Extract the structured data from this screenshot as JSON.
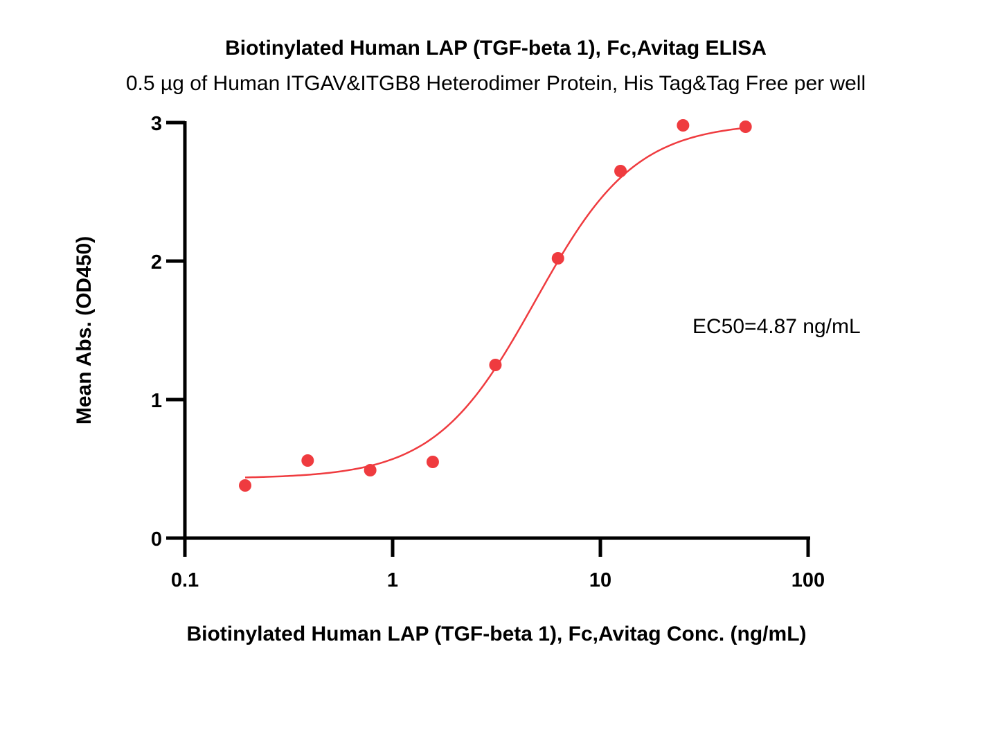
{
  "chart_data": {
    "type": "scatter",
    "title": "Biotinylated Human LAP (TGF-beta 1), Fc,Avitag ELISA",
    "subtitle": "0.5 µg of Human ITGAV&ITGB8 Heterodimer Protein, His Tag&Tag Free per well",
    "xlabel": "Biotinylated Human LAP (TGF-beta 1), Fc,Avitag Conc. (ng/mL)",
    "ylabel": "Mean Abs. (OD450)",
    "x_scale": "log",
    "xlim": [
      0.1,
      100
    ],
    "ylim": [
      0,
      3
    ],
    "x_ticks": [
      "0.1",
      "1",
      "10",
      "100"
    ],
    "y_ticks": [
      "0",
      "1",
      "2",
      "3"
    ],
    "grid": false,
    "annotation": "EC50=4.87 ng/mL",
    "color": "#ef3b3f",
    "points": {
      "x": [
        0.195,
        0.39,
        0.78,
        1.56,
        3.125,
        6.25,
        12.5,
        25,
        50
      ],
      "y": [
        0.38,
        0.56,
        0.49,
        0.55,
        1.25,
        2.02,
        2.65,
        2.98,
        2.97
      ]
    },
    "fit": {
      "model": "4PL",
      "bottom": 0.43,
      "top": 3.0,
      "ec50": 4.87,
      "hill": 1.8
    }
  }
}
